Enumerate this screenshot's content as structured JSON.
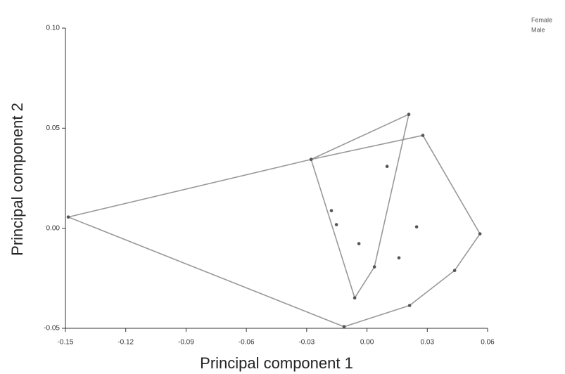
{
  "chart_data": {
    "type": "scatter",
    "xlabel": "Principal component 1",
    "ylabel": "Principal component 2",
    "hull": true,
    "series": [
      {
        "name": "Female",
        "color": "#555555",
        "hull_color": "#999999",
        "x": [
          -0.0278,
          0.0208,
          0.0037,
          -0.0061,
          -0.0177,
          -0.0152,
          -0.004,
          0.01
        ],
        "y": [
          0.0344,
          0.0569,
          -0.0193,
          -0.0348,
          0.0088,
          0.0018,
          -0.0077,
          0.0309
        ]
      },
      {
        "name": "Male",
        "color": "#555555",
        "hull_color": "#999999",
        "x": [
          -0.1486,
          -0.0278,
          0.0278,
          0.0562,
          0.0436,
          0.0212,
          -0.0114,
          0.0247,
          0.0159
        ],
        "y": [
          0.0056,
          0.0344,
          0.0464,
          -0.0028,
          -0.0211,
          -0.0386,
          -0.0492,
          0.0007,
          -0.0148
        ]
      }
    ],
    "xlim": [
      -0.15,
      0.06
    ],
    "xticks": [
      -0.15,
      -0.12,
      -0.09,
      -0.06,
      -0.03,
      {
        "value": 0,
        "label": "0.00"
      },
      0.03,
      0.06
    ],
    "ylim": [
      -0.05,
      0.1
    ],
    "yticks": [
      -0.05,
      {
        "value": 0,
        "label": "0.00"
      },
      0.05,
      {
        "value": 0.1,
        "label": "0.10"
      }
    ],
    "legend": "top-right"
  }
}
